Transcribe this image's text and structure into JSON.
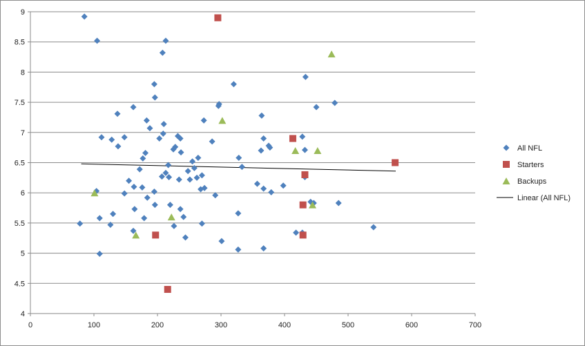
{
  "chart_data": {
    "type": "scatter",
    "title": "",
    "xlabel": "",
    "ylabel": "",
    "xlim": [
      0,
      700
    ],
    "ylim": [
      4,
      9
    ],
    "x_ticks": [
      "0",
      "100",
      "200",
      "300",
      "400",
      "500",
      "600",
      "700"
    ],
    "y_ticks": [
      "4",
      "4.5",
      "5",
      "5.5",
      "6",
      "6.5",
      "7",
      "7.5",
      "8",
      "8.5",
      "9"
    ],
    "grid": "horizontal major gridlines",
    "legend_position": "right",
    "series": [
      {
        "name": "All NFL",
        "marker": "diamond",
        "color": "#4F81BD",
        "points": [
          [
            85,
            8.92
          ],
          [
            105,
            8.52
          ],
          [
            213,
            8.52
          ],
          [
            208,
            8.32
          ],
          [
            195,
            7.8
          ],
          [
            320,
            7.8
          ],
          [
            433,
            7.92
          ],
          [
            196,
            7.58
          ],
          [
            297,
            7.47
          ],
          [
            296,
            7.44
          ],
          [
            479,
            7.49
          ],
          [
            450,
            7.42
          ],
          [
            162,
            7.42
          ],
          [
            137,
            7.31
          ],
          [
            364,
            7.28
          ],
          [
            183,
            7.2
          ],
          [
            273,
            7.2
          ],
          [
            210,
            7.14
          ],
          [
            188,
            7.07
          ],
          [
            209,
            6.98
          ],
          [
            112,
            6.92
          ],
          [
            128,
            6.88
          ],
          [
            148,
            6.92
          ],
          [
            232,
            6.94
          ],
          [
            236,
            6.9
          ],
          [
            203,
            6.9
          ],
          [
            367,
            6.9
          ],
          [
            428,
            6.93
          ],
          [
            286,
            6.85
          ],
          [
            138,
            6.77
          ],
          [
            228,
            6.76
          ],
          [
            225,
            6.72
          ],
          [
            375,
            6.78
          ],
          [
            377,
            6.75
          ],
          [
            363,
            6.7
          ],
          [
            432,
            6.71
          ],
          [
            181,
            6.66
          ],
          [
            237,
            6.67
          ],
          [
            177,
            6.57
          ],
          [
            264,
            6.58
          ],
          [
            328,
            6.58
          ],
          [
            217,
            6.46
          ],
          [
            255,
            6.52
          ],
          [
            333,
            6.43
          ],
          [
            172,
            6.39
          ],
          [
            258,
            6.41
          ],
          [
            213,
            6.33
          ],
          [
            248,
            6.36
          ],
          [
            218,
            6.26
          ],
          [
            262,
            6.25
          ],
          [
            270,
            6.29
          ],
          [
            432,
            6.26
          ],
          [
            207,
            6.27
          ],
          [
            234,
            6.22
          ],
          [
            251,
            6.22
          ],
          [
            155,
            6.2
          ],
          [
            357,
            6.15
          ],
          [
            398,
            6.12
          ],
          [
            163,
            6.1
          ],
          [
            176,
            6.09
          ],
          [
            274,
            6.08
          ],
          [
            268,
            6.06
          ],
          [
            367,
            6.07
          ],
          [
            104,
            6.03
          ],
          [
            148,
            5.99
          ],
          [
            195,
            6.02
          ],
          [
            379,
            6.01
          ],
          [
            291,
            5.96
          ],
          [
            184,
            5.92
          ],
          [
            441,
            5.85
          ],
          [
            446,
            5.83
          ],
          [
            485,
            5.83
          ],
          [
            220,
            5.8
          ],
          [
            196,
            5.8
          ],
          [
            236,
            5.73
          ],
          [
            164,
            5.73
          ],
          [
            130,
            5.65
          ],
          [
            327,
            5.66
          ],
          [
            179,
            5.58
          ],
          [
            241,
            5.6
          ],
          [
            109,
            5.58
          ],
          [
            126,
            5.47
          ],
          [
            78,
            5.49
          ],
          [
            270,
            5.49
          ],
          [
            226,
            5.45
          ],
          [
            540,
            5.43
          ],
          [
            162,
            5.37
          ],
          [
            418,
            5.34
          ],
          [
            428,
            5.34
          ],
          [
            244,
            5.26
          ],
          [
            301,
            5.2
          ],
          [
            367,
            5.08
          ],
          [
            327,
            5.06
          ],
          [
            109,
            4.99
          ]
        ]
      },
      {
        "name": "Starters",
        "marker": "square",
        "color": "#C0504D",
        "points": [
          [
            295,
            8.9
          ],
          [
            413,
            6.9
          ],
          [
            574,
            6.5
          ],
          [
            432,
            6.3
          ],
          [
            429,
            5.8
          ],
          [
            197,
            5.3
          ],
          [
            429,
            5.3
          ],
          [
            216,
            4.4
          ]
        ]
      },
      {
        "name": "Backups",
        "marker": "triangle",
        "color": "#9BBB59",
        "points": [
          [
            474,
            8.3
          ],
          [
            302,
            7.2
          ],
          [
            417,
            6.7
          ],
          [
            452,
            6.7
          ],
          [
            101,
            6.0
          ],
          [
            444,
            5.8
          ],
          [
            222,
            5.6
          ],
          [
            166,
            5.3
          ]
        ]
      }
    ],
    "trendline": {
      "name": "Linear (All NFL)",
      "color": "#000000",
      "points": [
        [
          80,
          6.48
        ],
        [
          575,
          6.36
        ]
      ]
    }
  }
}
